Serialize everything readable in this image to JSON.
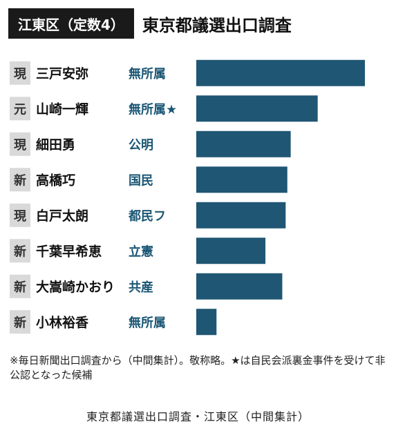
{
  "header": {
    "district_badge": "江東区（定数4）",
    "title": "東京都議選出口調査"
  },
  "chart_data": {
    "type": "bar",
    "orientation": "horizontal",
    "bar_color": "#1f5673",
    "status_box_color": "#d9d9d9",
    "party_color": "#1a5674",
    "grid": false,
    "rows": [
      {
        "status": "現",
        "name": "三戸安弥",
        "party": "無所属",
        "value": 100
      },
      {
        "status": "元",
        "name": "山崎一輝",
        "party": "無所属★",
        "value": 72
      },
      {
        "status": "現",
        "name": "細田勇",
        "party": "公明",
        "value": 56
      },
      {
        "status": "新",
        "name": "高橋巧",
        "party": "国民",
        "value": 54
      },
      {
        "status": "現",
        "name": "白戸太朗",
        "party": "都民フ",
        "value": 53
      },
      {
        "status": "新",
        "name": "千葉早希恵",
        "party": "立憲",
        "value": 41
      },
      {
        "status": "新",
        "name": "大嵩崎かおり",
        "party": "共産",
        "value": 51
      },
      {
        "status": "新",
        "name": "小林裕香",
        "party": "無所属",
        "value": 12
      }
    ]
  },
  "footnote": "※毎日新聞出口調査から（中間集計）。敬称略。★は自民会派裏金事件を受けて非公認となった候補",
  "caption": "東京都議選出口調査・江東区（中間集計）"
}
